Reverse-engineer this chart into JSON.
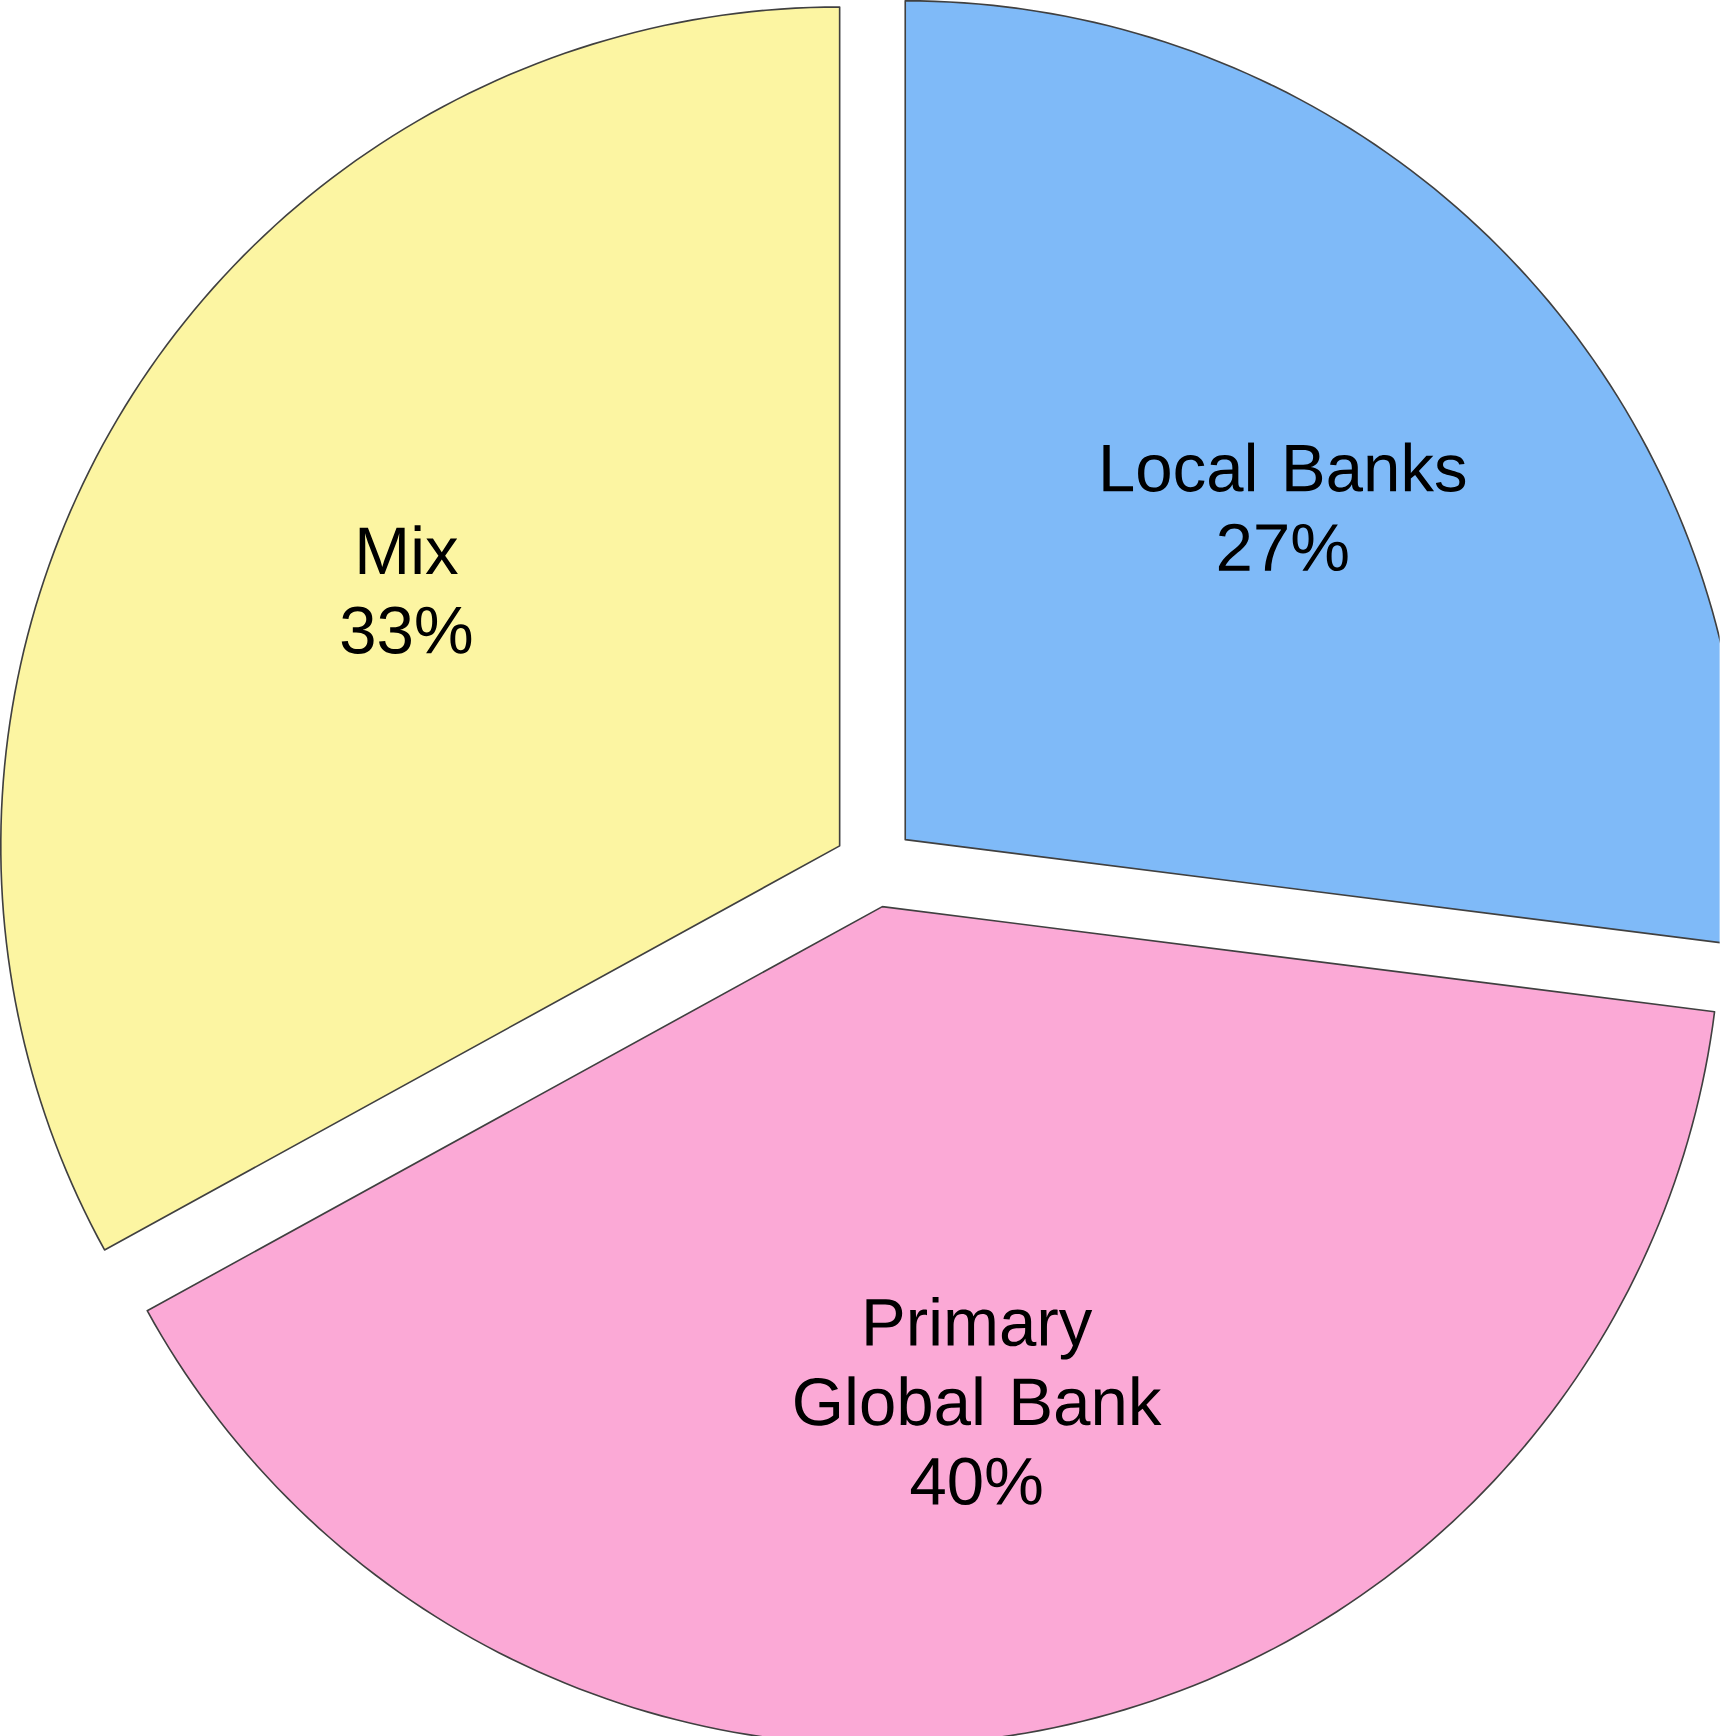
{
  "chart_data": {
    "type": "pie",
    "categories": [
      "Local Banks",
      "Primary Global Bank",
      "Mix"
    ],
    "values": [
      27,
      40,
      33
    ],
    "colors": [
      "#7fbaf8",
      "#fba9d6",
      "#fcf5a2"
    ],
    "value_labels": [
      "27%",
      "40%",
      "33%"
    ]
  }
}
